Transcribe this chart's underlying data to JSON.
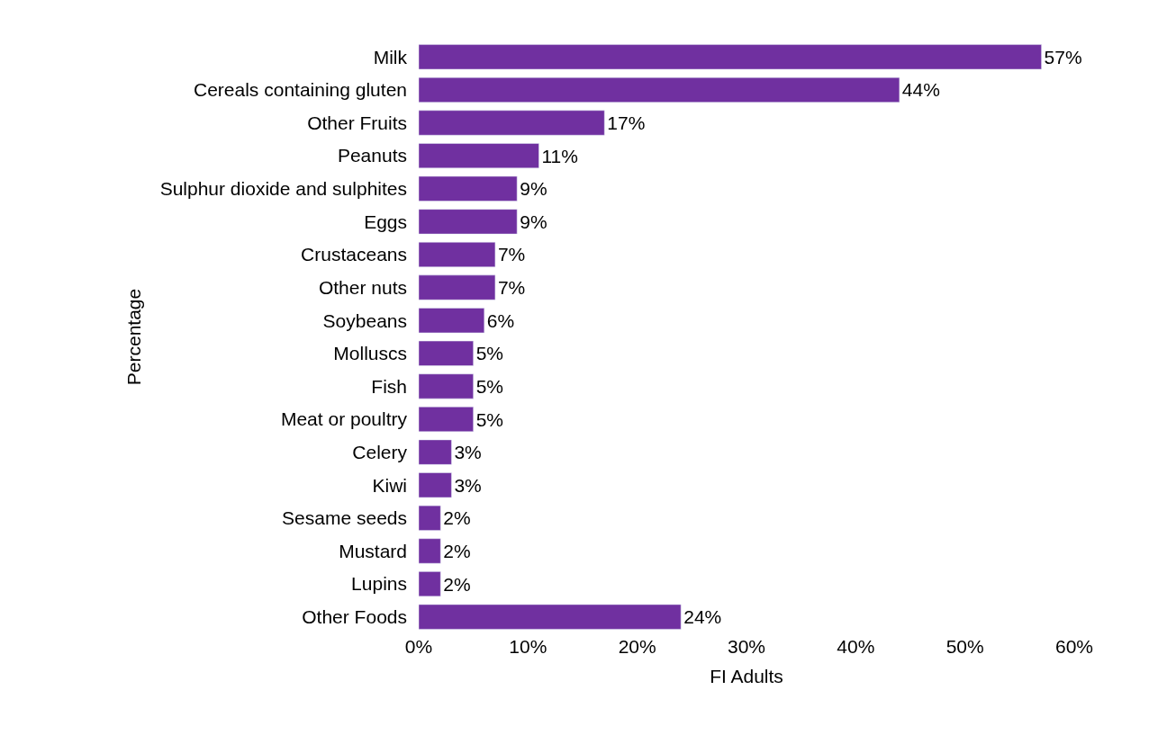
{
  "chart_data": {
    "type": "bar",
    "orientation": "horizontal",
    "xlabel": "FI Adults",
    "ylabel": "Percentage",
    "categories": [
      "Milk",
      "Cereals containing gluten",
      "Other Fruits",
      "Peanuts",
      "Sulphur dioxide and sulphites",
      "Eggs",
      "Crustaceans",
      "Other nuts",
      "Soybeans",
      "Molluscs",
      "Fish",
      "Meat or poultry",
      "Celery",
      "Kiwi",
      "Sesame seeds",
      "Mustard",
      "Lupins",
      "Other Foods"
    ],
    "values": [
      57,
      44,
      17,
      11,
      9,
      9,
      7,
      7,
      6,
      5,
      5,
      5,
      3,
      3,
      2,
      2,
      2,
      24
    ],
    "value_labels": [
      "57%",
      "44%",
      "17%",
      "11%",
      "9%",
      "9%",
      "7%",
      "7%",
      "6%",
      "5%",
      "5%",
      "5%",
      "3%",
      "3%",
      "2%",
      "2%",
      "2%",
      "24%"
    ],
    "color": "#7030a0",
    "xlim": [
      0,
      60
    ],
    "xticks": [
      {
        "value": 0,
        "label": "0%"
      },
      {
        "value": 10,
        "label": "10%"
      },
      {
        "value": 20,
        "label": "20%"
      },
      {
        "value": 30,
        "label": "30%"
      },
      {
        "value": 40,
        "label": "40%"
      },
      {
        "value": 50,
        "label": "50%"
      },
      {
        "value": 60,
        "label": "60%"
      }
    ],
    "data_labels": false
  }
}
